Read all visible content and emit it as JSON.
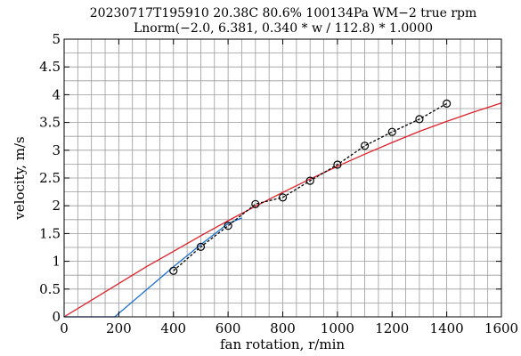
{
  "chart_data": {
    "type": "line",
    "title": "20230717T195910 20.38C 80.6% 100134Pa WM−2 true rpm",
    "subtitle": "Lnorm(−2.0, 6.381, 0.340 * w / 112.8) * 1.0000",
    "xlabel": "fan rotation, r/min",
    "ylabel": "velocity, m/s",
    "xlim": [
      0,
      1600
    ],
    "ylim": [
      0,
      5
    ],
    "x_ticks": [
      0,
      200,
      400,
      600,
      800,
      1000,
      1200,
      1400,
      1600
    ],
    "y_ticks": [
      0,
      0.5,
      1,
      1.5,
      2,
      2.5,
      3,
      3.5,
      4,
      4.5,
      5
    ],
    "x_tick_labels": [
      "0",
      "200",
      "400",
      "600",
      "800",
      "1000",
      "1200",
      "1400",
      "1600"
    ],
    "y_tick_labels": [
      "0",
      "0.5",
      "1",
      "1.5",
      "2",
      "2.5",
      "3",
      "3.5",
      "4",
      "4.5",
      "5"
    ],
    "grid": true,
    "series": [
      {
        "color": "#e0202a",
        "style": "solid",
        "x": [
          0,
          100,
          200,
          300,
          400,
          500,
          600,
          700,
          800,
          900,
          1000,
          1100,
          1200,
          1300,
          1400,
          1500,
          1600
        ],
        "y": [
          0,
          0.3,
          0.6,
          0.9,
          1.18,
          1.46,
          1.73,
          1.99,
          2.24,
          2.48,
          2.71,
          2.93,
          3.14,
          3.34,
          3.52,
          3.69,
          3.85
        ]
      },
      {
        "color": "#1a6fd0",
        "style": "solid",
        "x": [
          0,
          185,
          400,
          500,
          600,
          650
        ],
        "y": [
          0,
          0,
          0.9,
          1.3,
          1.68,
          1.78
        ]
      },
      {
        "color": "#000000",
        "style": "dashed",
        "marker": "circle",
        "x": [
          400,
          500,
          600,
          700,
          800,
          900,
          1000,
          1100,
          1200,
          1300,
          1400
        ],
        "y": [
          0.83,
          1.26,
          1.64,
          2.03,
          2.15,
          2.45,
          2.74,
          3.08,
          3.33,
          3.56,
          3.84
        ]
      }
    ]
  }
}
